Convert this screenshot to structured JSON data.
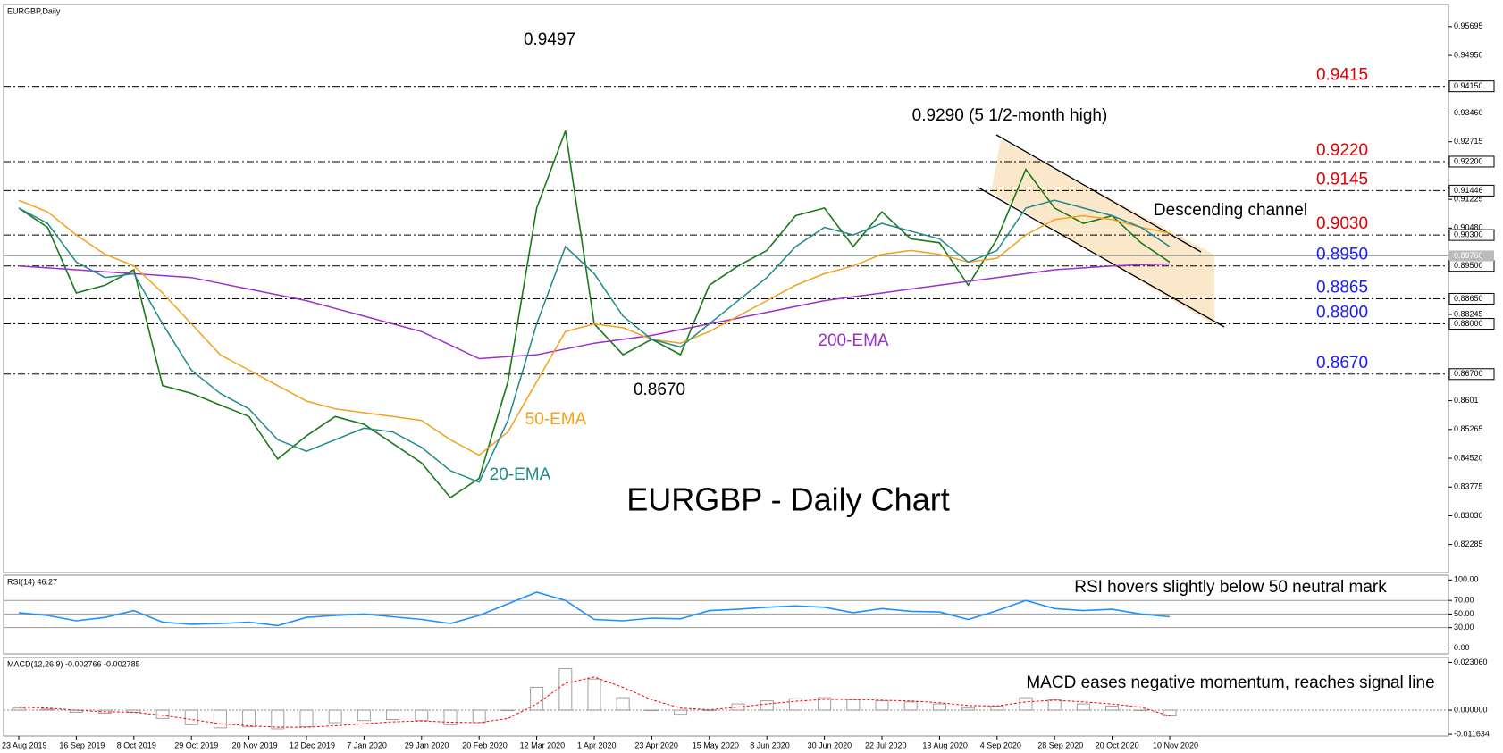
{
  "chart_data": [
    {
      "type": "line",
      "title": "EURGBP,Daily",
      "annotations": [
        "0.9497",
        "0.8670",
        "0.9290 (5 1/2-month high)",
        "Descending channel",
        "EURGBP - Daily Chart"
      ],
      "series": [
        {
          "color": "#1a7a1a",
          "values": [
            0.91,
            0.905,
            0.888,
            0.89,
            0.894,
            0.864,
            0.862,
            0.859,
            0.856,
            0.845,
            0.851,
            0.856,
            0.854,
            0.849,
            0.844,
            0.835,
            0.84,
            0.865,
            0.91,
            0.93,
            0.88,
            0.872,
            0.876,
            0.872,
            0.89,
            0.895,
            0.899,
            0.908,
            0.91,
            0.9,
            0.909,
            0.902,
            0.901,
            0.89,
            0.902,
            0.92,
            0.91,
            0.906,
            0.908,
            0.901,
            0.896
          ]
        },
        {
          "name": "200-EMA",
          "color": "#9b30d0",
          "values": [
            0.895,
            0.8945,
            0.894,
            0.8935,
            0.893,
            0.8925,
            0.892,
            0.8905,
            0.889,
            0.8875,
            0.886,
            0.884,
            0.882,
            0.88,
            0.878,
            0.8745,
            0.871,
            0.8715,
            0.872,
            0.8735,
            0.875,
            0.876,
            0.877,
            0.8785,
            0.88,
            0.8815,
            0.883,
            0.8845,
            0.886,
            0.887,
            0.888,
            0.889,
            0.89,
            0.891,
            0.892,
            0.893,
            0.894,
            0.8945,
            0.895,
            0.8953,
            0.8955
          ]
        },
        {
          "name": "50-EMA",
          "color": "#f5a01a",
          "values": [
            0.912,
            0.909,
            0.903,
            0.898,
            0.895,
            0.888,
            0.88,
            0.872,
            0.868,
            0.864,
            0.86,
            0.858,
            0.857,
            0.856,
            0.855,
            0.85,
            0.846,
            0.852,
            0.865,
            0.878,
            0.88,
            0.879,
            0.876,
            0.875,
            0.878,
            0.882,
            0.886,
            0.89,
            0.893,
            0.895,
            0.898,
            0.899,
            0.898,
            0.896,
            0.897,
            0.903,
            0.907,
            0.908,
            0.907,
            0.905,
            0.9035
          ]
        },
        {
          "name": "20-EMA",
          "color": "#1f8a8a",
          "values": [
            0.91,
            0.906,
            0.896,
            0.892,
            0.893,
            0.88,
            0.868,
            0.862,
            0.858,
            0.85,
            0.847,
            0.85,
            0.853,
            0.852,
            0.848,
            0.842,
            0.839,
            0.855,
            0.88,
            0.9,
            0.893,
            0.882,
            0.876,
            0.874,
            0.88,
            0.886,
            0.892,
            0.9,
            0.905,
            0.903,
            0.906,
            0.904,
            0.902,
            0.896,
            0.899,
            0.91,
            0.912,
            0.91,
            0.908,
            0.905,
            0.9
          ]
        }
      ],
      "ylim": [
        0.8156,
        0.9627
      ],
      "yticks": [
        0.95695,
        {
          "value": 0.9495,
          "label": "0.94950"
        },
        {
          "value": 0.9346,
          "label": "0.93460"
        },
        0.92715,
        0.91225,
        {
          "value": 0.9048,
          "label": "0.90480"
        },
        0.88245,
        0.8601,
        0.85265,
        {
          "value": 0.8452,
          "label": "0.84520"
        },
        0.83775,
        {
          "value": 0.8303,
          "label": "0.83030"
        },
        0.82285
      ],
      "levels": [
        {
          "value": 0.9415,
          "label": "0.9415",
          "tag": "0.94150",
          "color": "#e00000"
        },
        {
          "value": 0.922,
          "label": "0.9220",
          "tag": "0.92200",
          "color": "#e00000"
        },
        {
          "value": 0.9145,
          "label": "0.9145",
          "tag": "0.91446",
          "color": "#e00000"
        },
        {
          "value": 0.903,
          "label": "0.9030",
          "tag": "0.90300",
          "color": "#e00000"
        },
        {
          "value": 0.895,
          "label": "0.8950",
          "tag": "0.89500",
          "color": "#1a1aff"
        },
        {
          "value": 0.8865,
          "label": "0.8865",
          "tag": "0.88650",
          "color": "#1a1aff"
        },
        {
          "value": 0.88,
          "label": "0.8800",
          "tag": "0.88000",
          "color": "#1a1aff"
        },
        {
          "value": 0.867,
          "label": "0.8670",
          "tag": "0.86700",
          "color": "#1a1aff"
        }
      ],
      "last": {
        "value": 0.8976,
        "label": "0.89760"
      }
    },
    {
      "type": "line",
      "title": "RSI(14) 46.27",
      "note": "RSI hovers slightly below 50 neutral mark",
      "series": [
        {
          "color": "#1e90ff",
          "values": [
            52,
            48,
            40,
            45,
            55,
            38,
            35,
            36,
            38,
            33,
            45,
            48,
            50,
            46,
            42,
            36,
            48,
            65,
            82,
            70,
            42,
            40,
            44,
            43,
            55,
            57,
            60,
            62,
            60,
            52,
            58,
            54,
            53,
            42,
            55,
            70,
            58,
            55,
            57,
            50,
            46
          ]
        }
      ],
      "ylim": [
        -8.5,
        107
      ],
      "yticks": [
        {
          "value": 100,
          "label": "100.00"
        },
        {
          "value": 70,
          "label": "70.00"
        },
        {
          "value": 50,
          "label": "50.00"
        },
        {
          "value": 30,
          "label": "30.00"
        },
        {
          "value": 0,
          "label": "0.00"
        }
      ],
      "grid": [
        70,
        50,
        30
      ]
    },
    {
      "type": "macd",
      "title": "MACD(12,26,9) -0.002766 -0.002785",
      "note": "MACD eases negative momentum, reaches signal line",
      "categories": [
        "23 Aug 2019",
        null,
        "16 Sep 2019",
        null,
        "8 Oct 2019",
        null,
        "29 Oct 2019",
        null,
        "20 Nov 2019",
        null,
        "12 Dec 2019",
        null,
        "7 Jan 2020",
        null,
        "29 Jan 2020",
        null,
        "20 Feb 2020",
        null,
        "12 Mar 2020",
        null,
        "1 Apr 2020",
        null,
        "23 Apr 2020",
        null,
        "15 May 2020",
        null,
        "8 Jun 2020",
        null,
        "30 Jun 2020",
        null,
        "22 Jul 2020",
        null,
        "13 Aug 2020",
        null,
        "4 Sep 2020",
        null,
        "28 Sep 2020",
        null,
        "20 Oct 2020",
        null,
        "10 Nov 2020"
      ],
      "series": [
        {
          "color": "#a0a0a0",
          "values": [
            0.001,
            0.0005,
            -0.001,
            -0.0015,
            -0.001,
            -0.004,
            -0.007,
            -0.0085,
            -0.008,
            -0.009,
            -0.008,
            -0.006,
            -0.005,
            -0.0045,
            -0.005,
            -0.007,
            -0.006,
            0.0,
            0.011,
            0.02,
            0.015,
            0.006,
            0.0,
            -0.002,
            0.0,
            0.003,
            0.0045,
            0.0055,
            0.006,
            0.005,
            0.0045,
            0.004,
            0.003,
            0.001,
            0.002,
            0.006,
            0.005,
            0.003,
            0.002,
            0.0,
            -0.0028
          ]
        },
        {
          "color": "#ff0000",
          "values": [
            0.0015,
            0.001,
            0.0,
            -0.0008,
            -0.001,
            -0.0025,
            -0.0045,
            -0.0065,
            -0.0075,
            -0.0082,
            -0.0082,
            -0.0075,
            -0.0065,
            -0.0056,
            -0.0052,
            -0.0058,
            -0.006,
            -0.004,
            0.003,
            0.013,
            0.016,
            0.011,
            0.005,
            0.001,
            0.0002,
            0.0015,
            0.003,
            0.0043,
            0.0052,
            0.0052,
            0.0048,
            0.0044,
            0.0036,
            0.0022,
            0.002,
            0.004,
            0.0048,
            0.004,
            0.003,
            0.0014,
            -0.0028
          ]
        }
      ],
      "ylim": [
        -0.01245,
        0.0254
      ],
      "yticks": [
        {
          "value": 0.02306,
          "label": "0.023060"
        },
        {
          "value": 0,
          "label": "0.000000"
        },
        {
          "value": -0.011634,
          "label": "-0.011634"
        }
      ]
    }
  ]
}
